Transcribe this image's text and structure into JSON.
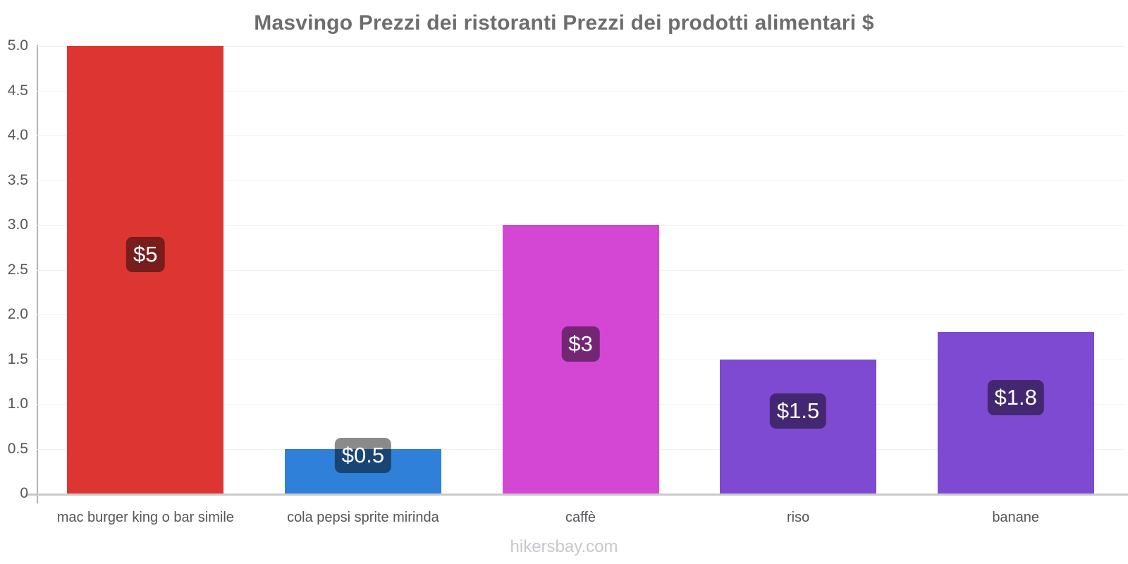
{
  "title": "Masvingo Prezzi dei ristoranti Prezzi dei prodotti alimentari $",
  "watermark": "hikersbay.com",
  "chart_data": {
    "type": "bar",
    "title": "Masvingo Prezzi dei ristoranti Prezzi dei prodotti alimentari $",
    "categories": [
      "mac burger king o bar simile",
      "cola pepsi sprite mirinda",
      "caffè",
      "riso",
      "banane"
    ],
    "values": [
      5,
      0.5,
      3,
      1.5,
      1.8
    ],
    "value_labels": [
      "$5",
      "$0.5",
      "$3",
      "$1.5",
      "$1.8"
    ],
    "bar_colors": [
      "#dd3632",
      "#2f80d8",
      "#d446d4",
      "#7d4ad1",
      "#7d4ad1"
    ],
    "currency": "$",
    "xlabel": "",
    "ylabel": "",
    "ylim": [
      0,
      5
    ],
    "ytick_values": [
      0,
      0.5,
      1.0,
      1.5,
      2.0,
      2.5,
      3.0,
      3.5,
      4.0,
      4.5,
      5.0
    ],
    "ytick_labels": [
      "0",
      "0.5",
      "1.0",
      "1.5",
      "2.0",
      "2.5",
      "3.0",
      "3.5",
      "4.0",
      "4.5",
      "5.0"
    ],
    "grid": "horizontal",
    "legend": "none",
    "colors": {
      "value_label_bg": "rgba(0,0,0,0.46)",
      "value_label_text": "#ffffff",
      "title_text": "#6d6d6d",
      "axis_text": "#57575b",
      "axis_line": "#b3b3b3",
      "baseline": "#c9c9c9",
      "gridline": "#f2f2f2",
      "watermark_text": "#c7c7cd"
    },
    "annotation": "hikersbay.com"
  }
}
